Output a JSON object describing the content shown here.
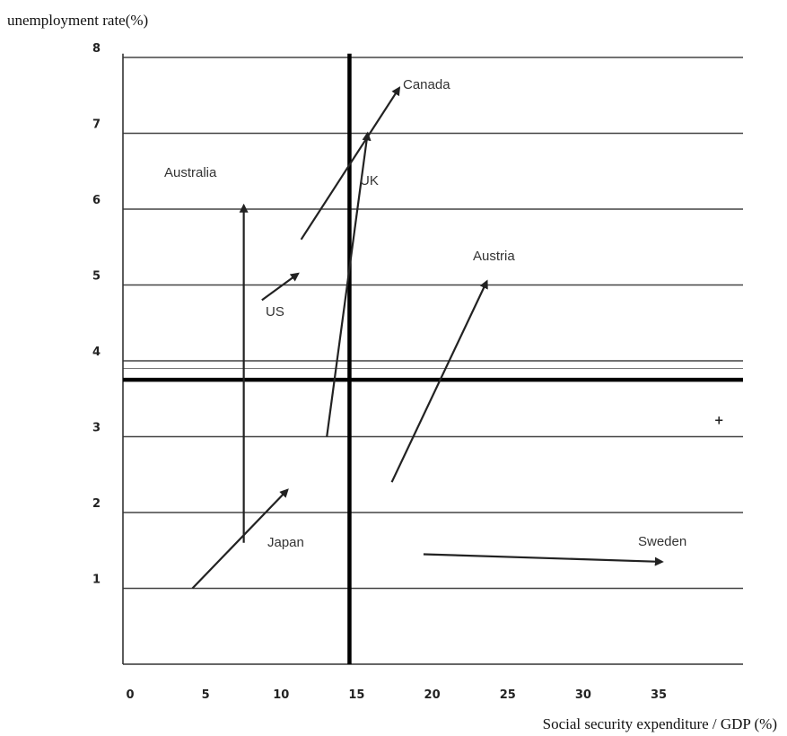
{
  "chart_data": {
    "type": "line",
    "ylabel": "unemployment rate(%)",
    "xlabel": "Social security expenditure / GDP (%)",
    "xlim": [
      0,
      40
    ],
    "ylim": [
      0,
      8
    ],
    "x_ticks": [
      "0",
      "5",
      "10",
      "15",
      "20",
      "25",
      "30",
      "35"
    ],
    "y_ticks": [
      "1",
      "2",
      "3",
      "4",
      "5",
      "6",
      "7",
      "8"
    ],
    "grid": "horizontal",
    "reference_lines": {
      "x": 15,
      "y": 3.75
    },
    "series": [
      {
        "name": "Australia",
        "points": [
          [
            8,
            1.6
          ],
          [
            8,
            6.05
          ]
        ]
      },
      {
        "name": "Canada",
        "points": [
          [
            11.8,
            5.6
          ],
          [
            18.3,
            7.6
          ]
        ]
      },
      {
        "name": "UK",
        "points": [
          [
            13.5,
            3.0
          ],
          [
            16.2,
            7.0
          ]
        ]
      },
      {
        "name": "US",
        "points": [
          [
            9.2,
            4.8
          ],
          [
            11.6,
            5.15
          ]
        ]
      },
      {
        "name": "Austria",
        "points": [
          [
            17.8,
            2.4
          ],
          [
            24.1,
            5.05
          ]
        ]
      },
      {
        "name": "Japan",
        "points": [
          [
            4.6,
            1.0
          ],
          [
            10.9,
            2.3
          ]
        ]
      },
      {
        "name": "Sweden",
        "points": [
          [
            19.9,
            1.45
          ],
          [
            35.7,
            1.35
          ]
        ]
      }
    ],
    "markers": [
      {
        "x": 39.5,
        "y": 3.25
      }
    ]
  }
}
